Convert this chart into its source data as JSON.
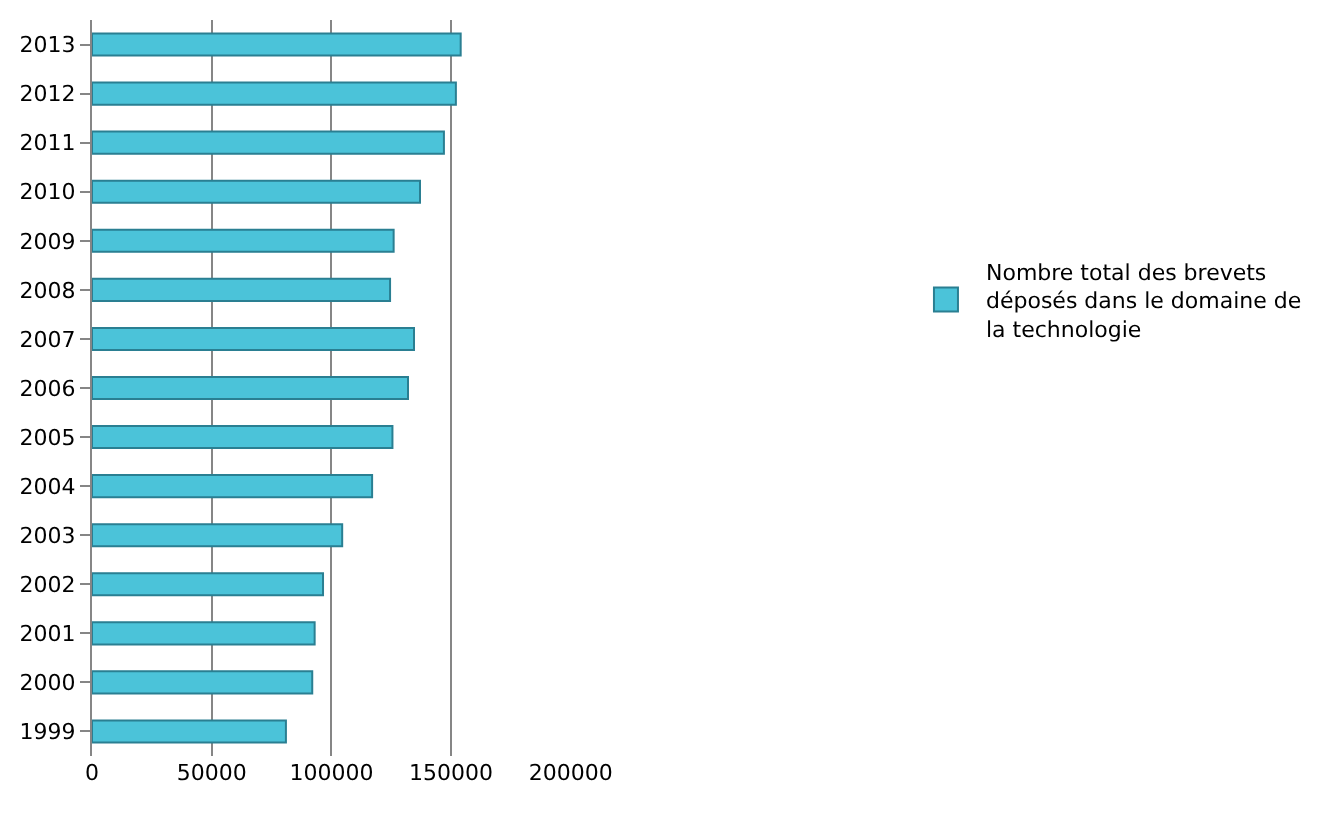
{
  "chart_data": {
    "type": "bar",
    "orientation": "horizontal",
    "categories": [
      "2013",
      "2012",
      "2011",
      "2010",
      "2009",
      "2008",
      "2007",
      "2006",
      "2005",
      "2004",
      "2003",
      "2002",
      "2001",
      "2000",
      "1999"
    ],
    "series": [
      {
        "name": "Nombre total des brevets déposés dans le domaine de la technologie",
        "color": "#4bc3d9",
        "values": [
          154000,
          152000,
          147000,
          137000,
          126000,
          124500,
          134500,
          132000,
          125500,
          117000,
          104500,
          96500,
          93000,
          92000,
          81000
        ]
      }
    ],
    "xlim": [
      0,
      200000
    ],
    "xticks": [
      0,
      50000,
      100000,
      150000,
      200000
    ],
    "grid": "x",
    "legend": "right"
  }
}
